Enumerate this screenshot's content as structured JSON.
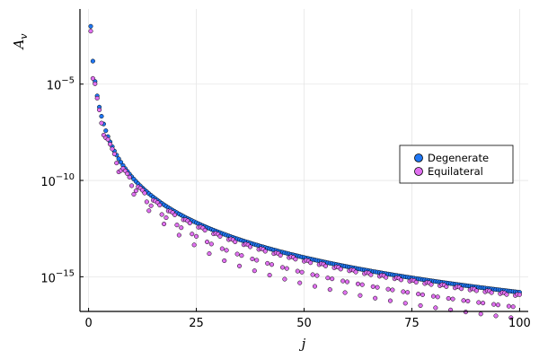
{
  "chart_data": {
    "type": "scatter",
    "xlabel": "j",
    "ylabel": "A",
    "ylabel_sub": "v",
    "xlim": [
      -2,
      102
    ],
    "ylim_log10": [
      -16.8,
      -1.1
    ],
    "y_scale": "log10",
    "grid": true,
    "legend_position": "right",
    "x_ticks": [
      {
        "value": 0,
        "label": "0"
      },
      {
        "value": 25,
        "label": "25"
      },
      {
        "value": 50,
        "label": "50"
      },
      {
        "value": 75,
        "label": "75"
      },
      {
        "value": 100,
        "label": "100"
      }
    ],
    "y_ticks": [
      {
        "exp": -5,
        "base": "10",
        "sup": "−5"
      },
      {
        "exp": -10,
        "base": "10",
        "sup": "−10"
      },
      {
        "exp": -15,
        "base": "10",
        "sup": "−15"
      }
    ],
    "series": [
      {
        "name": "Degenerate",
        "color": "#1f77f4",
        "x_start": 0.5,
        "x_step": 0.5,
        "x_end": 100,
        "y_log10": "approximately log10(A) = -2.0 - 6.0*log10(2j) for j = 0.5 … 100"
      },
      {
        "name": "Equilateral",
        "color": "#e070f0",
        "x_start": 0.5,
        "x_step": 0.5,
        "x_end": 100,
        "y_log10": "tracks Degenerate from below with periodic dips (period ≈ 3.5 in j), minima near 10^-16.4"
      }
    ]
  }
}
